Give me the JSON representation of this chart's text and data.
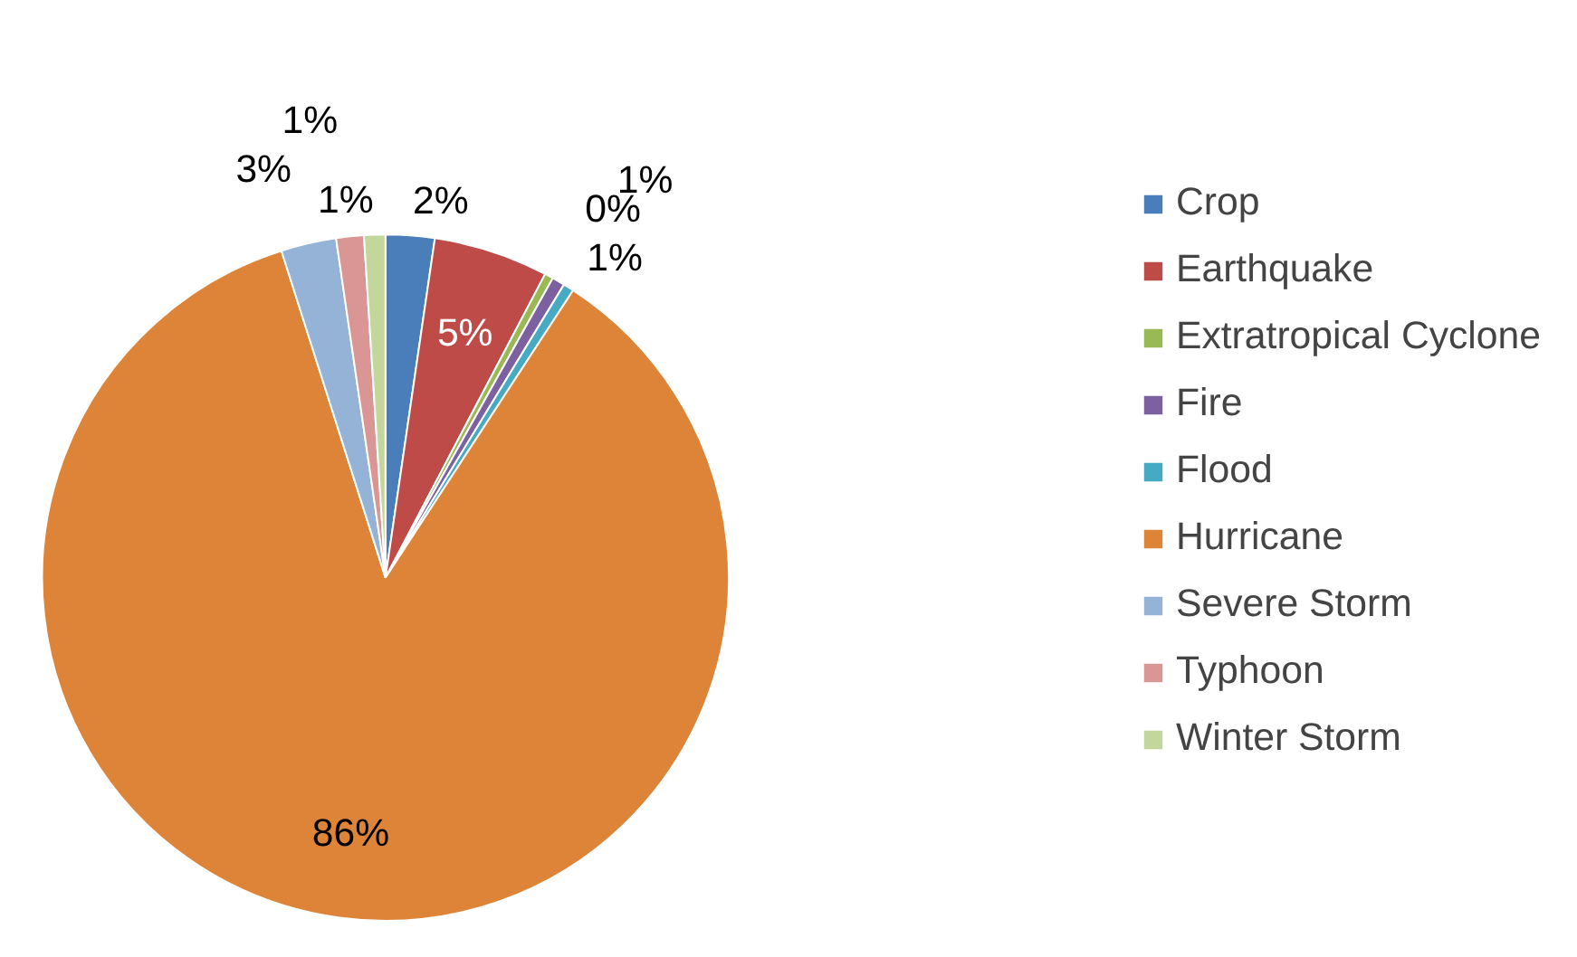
{
  "chart_data": {
    "type": "pie",
    "categories": [
      "Crop",
      "Earthquake",
      "Extratropical Cyclone",
      "Fire",
      "Flood",
      "Hurricane",
      "Severe Storm",
      "Typhoon",
      "Winter Storm"
    ],
    "values": [
      2.3,
      5.4,
      0.4,
      0.6,
      0.5,
      85.9,
      2.6,
      1.3,
      1.0
    ],
    "value_labels": [
      "2%",
      "5%",
      "0%",
      "1%",
      "1%",
      "86%",
      "3%",
      "1%",
      "1%"
    ],
    "colors": [
      "#4a7ebb",
      "#be4b48",
      "#98b954",
      "#7d60a0",
      "#46aac5",
      "#dd8439",
      "#95b3d7",
      "#d99694",
      "#c3d69b"
    ],
    "legend": "right"
  }
}
